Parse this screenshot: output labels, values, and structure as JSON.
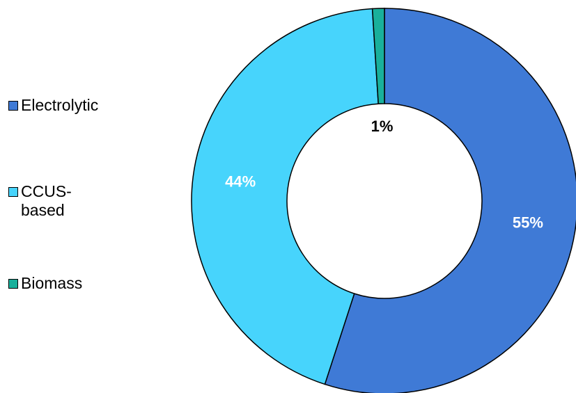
{
  "chart_data": {
    "type": "pie",
    "donut": true,
    "slices": [
      {
        "label": "Electrolytic",
        "value": 55,
        "display": "55%",
        "color": "#3f7ad6",
        "label_color": "#ffffff"
      },
      {
        "label": "CCUS-based",
        "value": 44,
        "display": "44%",
        "color": "#47d4fc",
        "label_color": "#ffffff"
      },
      {
        "label": "Biomass",
        "value": 1,
        "display": "1%",
        "color": "#19b09b",
        "label_color": "#000000"
      }
    ],
    "legend": {
      "position": "left",
      "items": [
        "Electrolytic",
        "CCUS-based",
        "Biomass"
      ]
    }
  }
}
